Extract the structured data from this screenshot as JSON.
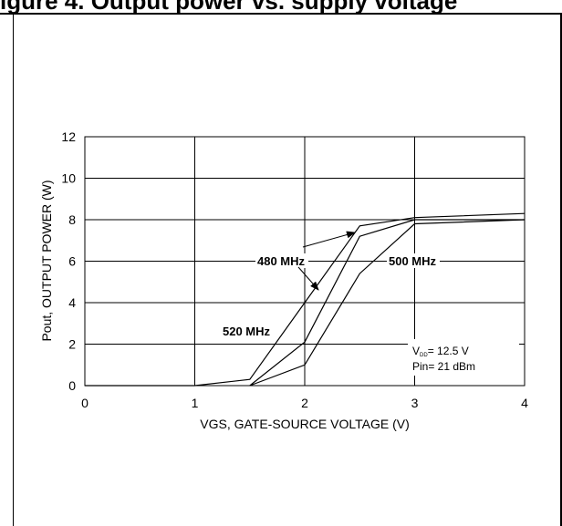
{
  "header": {
    "text": "igure 4. Output power vs. supply voltage"
  },
  "chart_data": {
    "type": "line",
    "title": "",
    "xlabel": "VGS, GATE-SOURCE VOLTAGE (V)",
    "ylabel": "Pout, OUTPUT POWER (W)",
    "xlim": [
      0,
      4
    ],
    "ylim": [
      0,
      12
    ],
    "xticks": [
      0,
      1,
      2,
      3,
      4
    ],
    "yticks": [
      0,
      2,
      4,
      6,
      8,
      10,
      12
    ],
    "grid": true,
    "series": [
      {
        "name": "520 MHz",
        "x": [
          0,
          1,
          1.5,
          2,
          2.5,
          3,
          4
        ],
        "y": [
          0,
          0,
          0.3,
          4,
          7.7,
          8.1,
          8.3
        ]
      },
      {
        "name": "500 MHz",
        "x": [
          1.5,
          2,
          2.5,
          3,
          4
        ],
        "y": [
          0,
          2.1,
          7.2,
          8.0,
          8.0
        ]
      },
      {
        "name": "480 MHz",
        "x": [
          1.5,
          2,
          2.5,
          3,
          4
        ],
        "y": [
          0,
          1,
          5.4,
          7.8,
          8.0
        ]
      }
    ],
    "annotations": {
      "label_480": "480 MHz",
      "label_500": "500 MHz",
      "label_520": "520 MHz",
      "condition_vdd_prefix": "V",
      "condition_vdd_sub": "DD",
      "condition_vdd_value": "= 12.5 V",
      "condition_pin": "Pin= 21 dBm"
    }
  }
}
